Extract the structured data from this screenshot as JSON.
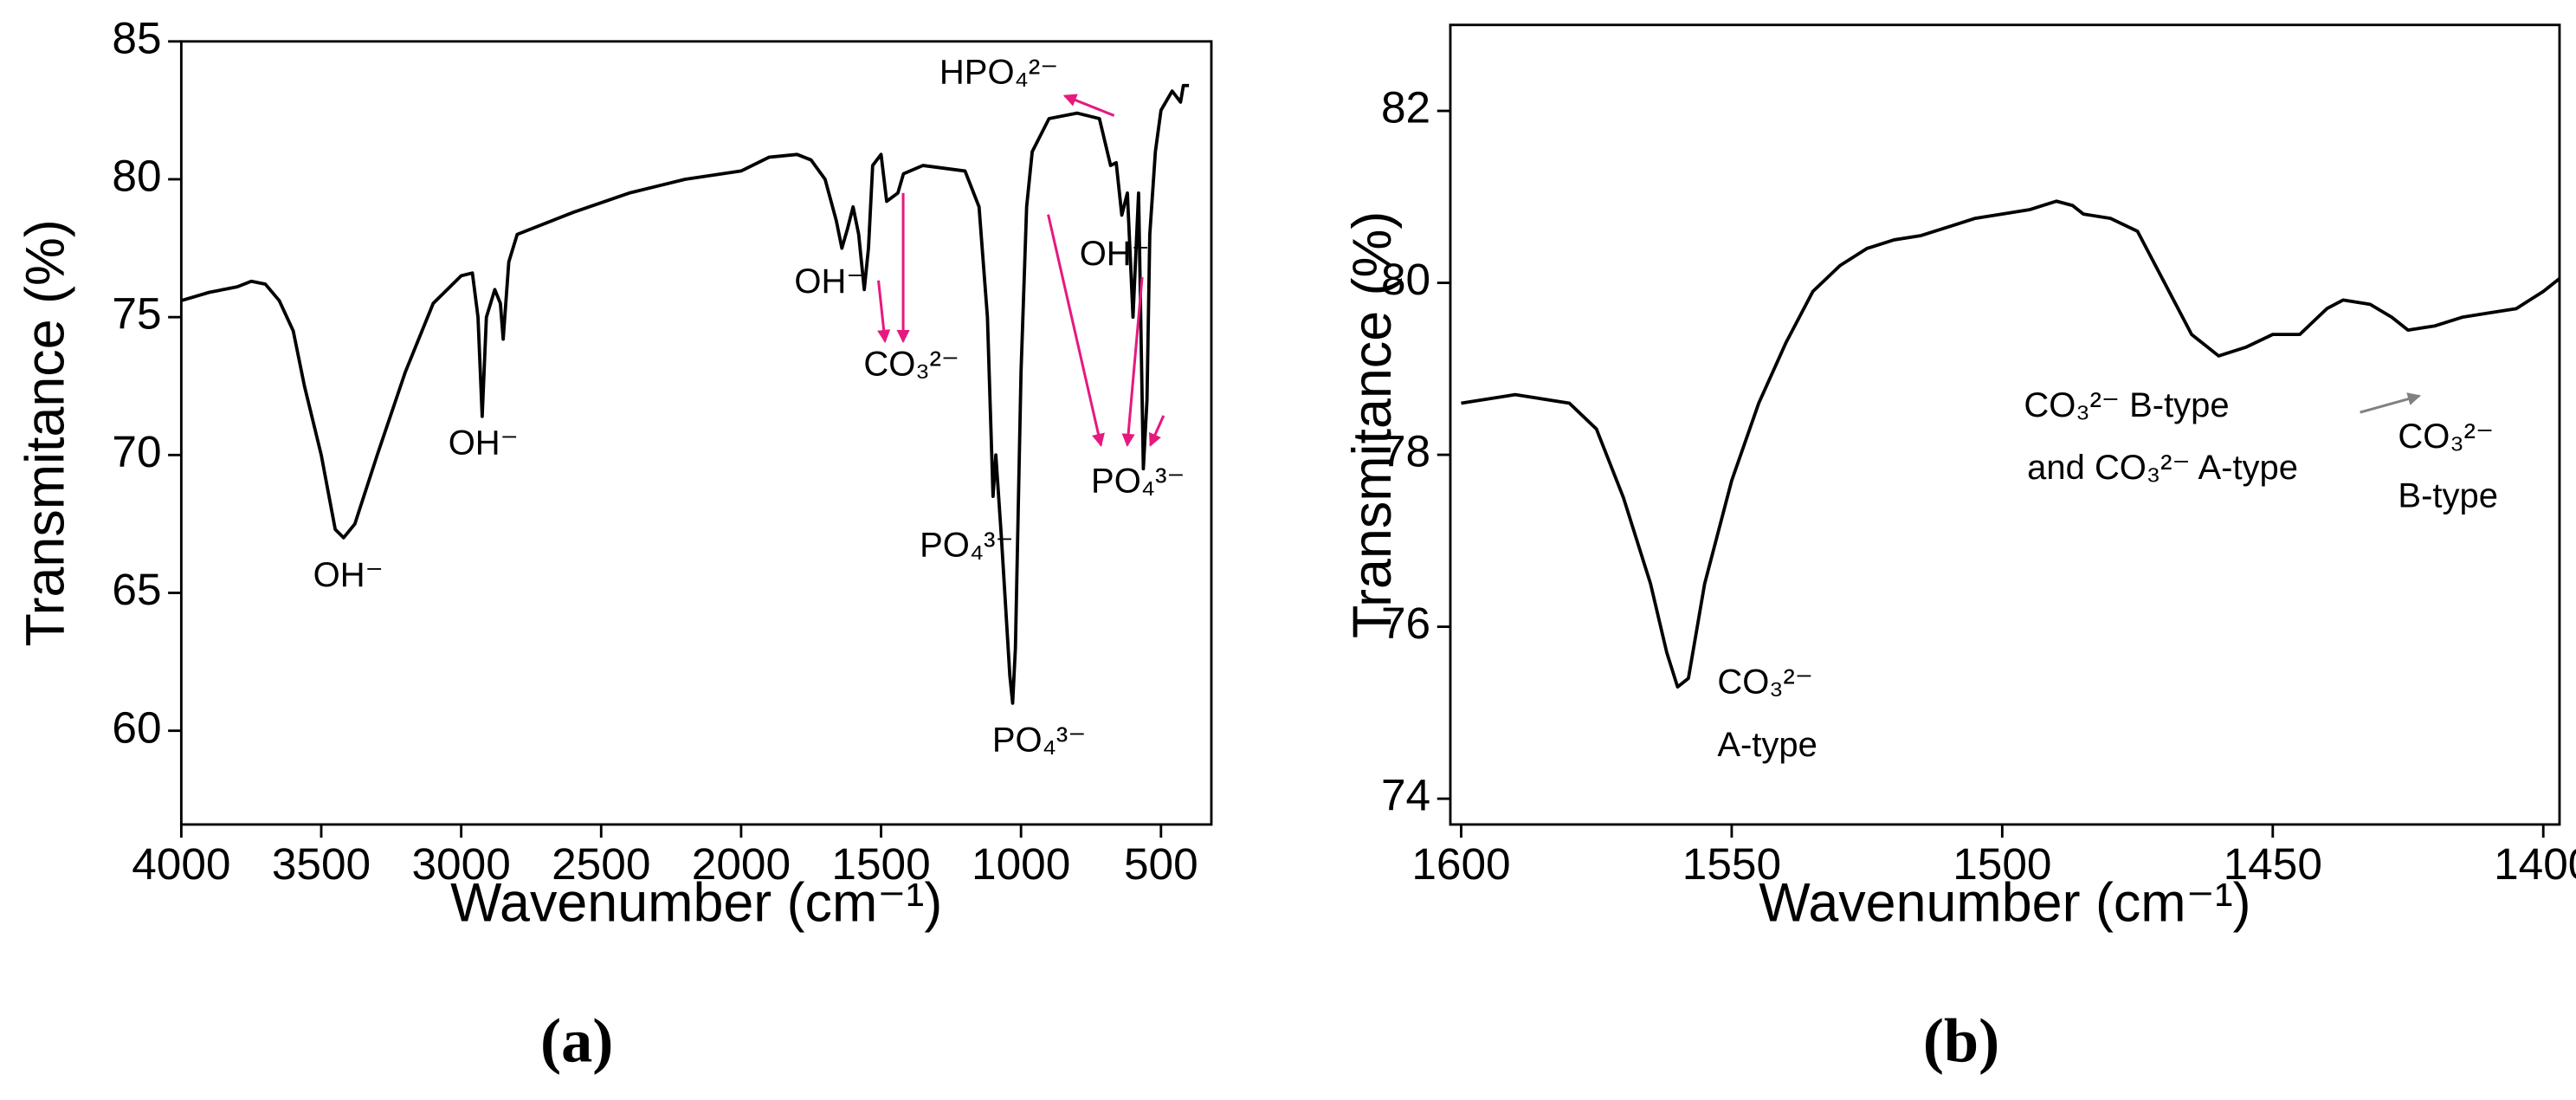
{
  "chart_data": [
    {
      "type": "line",
      "x_label": "Wavenumber (cm⁻¹)",
      "y_label": "Transmitance (%)",
      "panel_label": "(a)",
      "color": "#000000",
      "annotation_color": "#e6197f",
      "xlim": [
        4000,
        320
      ],
      "ylim": [
        56.6,
        85
      ],
      "xticks": [
        4000,
        3500,
        3000,
        2500,
        2000,
        1500,
        1000,
        500
      ],
      "yticks": [
        60,
        65,
        70,
        75,
        80,
        85
      ],
      "annotations": [
        "OH⁻",
        "OH⁻",
        "OH⁻",
        "CO₃²⁻",
        "PO₄³⁻",
        "PO₄³⁻",
        "HPO₄²⁻",
        "OH⁻",
        "PO₄³⁻"
      ],
      "x": [
        4000,
        3900,
        3800,
        3750,
        3700,
        3650,
        3600,
        3560,
        3500,
        3450,
        3420,
        3380,
        3300,
        3200,
        3100,
        3000,
        2960,
        2940,
        2925,
        2910,
        2880,
        2860,
        2850,
        2830,
        2800,
        2600,
        2400,
        2200,
        2000,
        1900,
        1800,
        1750,
        1700,
        1660,
        1640,
        1620,
        1600,
        1580,
        1560,
        1545,
        1530,
        1500,
        1480,
        1440,
        1420,
        1350,
        1200,
        1150,
        1120,
        1100,
        1090,
        1070,
        1040,
        1030,
        1020,
        1000,
        980,
        960,
        900,
        800,
        720,
        680,
        660,
        640,
        620,
        600,
        580,
        563,
        550,
        540,
        520,
        500,
        460,
        430,
        420,
        400
      ],
      "values": [
        75.6,
        75.9,
        76.1,
        76.3,
        76.2,
        75.6,
        74.5,
        72.5,
        70,
        67.3,
        67,
        67.5,
        70,
        73,
        75.5,
        76.5,
        76.6,
        75,
        71.4,
        75,
        76,
        75.5,
        74.2,
        77,
        78,
        78.8,
        79.5,
        80,
        80.3,
        80.8,
        80.9,
        80.7,
        80,
        78.5,
        77.5,
        78.2,
        79,
        78,
        76,
        77.5,
        80.5,
        80.9,
        79.2,
        79.5,
        80.2,
        80.5,
        80.3,
        79,
        75,
        68.5,
        70,
        67,
        62,
        61,
        63,
        73,
        79,
        81,
        82.2,
        82.4,
        82.2,
        80.5,
        80.6,
        78.7,
        79.5,
        75,
        79.5,
        69.5,
        72,
        78,
        81,
        82.5,
        83.2,
        82.8,
        83.4,
        83.4
      ]
    },
    {
      "type": "line",
      "x_label": "Wavenumber (cm⁻¹)",
      "y_label": "Transmitance (%)",
      "panel_label": "(b)",
      "color": "#000000",
      "annotation_color": "#808080",
      "xlim": [
        1602,
        1397
      ],
      "ylim": [
        73.7,
        83
      ],
      "xticks": [
        1600,
        1550,
        1500,
        1450,
        1400
      ],
      "yticks": [
        74,
        76,
        78,
        80,
        82
      ],
      "annotations": [
        "CO₃²⁻",
        "A-type",
        "CO₃²⁻  B-type",
        "and CO₃²⁻  A-type",
        "CO₃²⁻",
        "B-type"
      ],
      "x": [
        1600,
        1590,
        1580,
        1575,
        1570,
        1565,
        1562,
        1560,
        1558,
        1555,
        1550,
        1545,
        1540,
        1535,
        1530,
        1525,
        1520,
        1515,
        1510,
        1505,
        1500,
        1495,
        1490,
        1487,
        1485,
        1480,
        1475,
        1470,
        1465,
        1460,
        1455,
        1450,
        1445,
        1440,
        1437,
        1432,
        1428,
        1425,
        1420,
        1415,
        1410,
        1405,
        1400,
        1397
      ],
      "values": [
        78.6,
        78.7,
        78.6,
        78.3,
        77.5,
        76.5,
        75.7,
        75.3,
        75.4,
        76.5,
        77.7,
        78.6,
        79.3,
        79.9,
        80.2,
        80.4,
        80.5,
        80.55,
        80.65,
        80.75,
        80.8,
        80.85,
        80.95,
        80.9,
        80.8,
        80.75,
        80.6,
        80,
        79.4,
        79.15,
        79.25,
        79.4,
        79.4,
        79.7,
        79.8,
        79.75,
        79.6,
        79.45,
        79.5,
        79.6,
        79.65,
        79.7,
        79.9,
        80.05
      ]
    }
  ]
}
